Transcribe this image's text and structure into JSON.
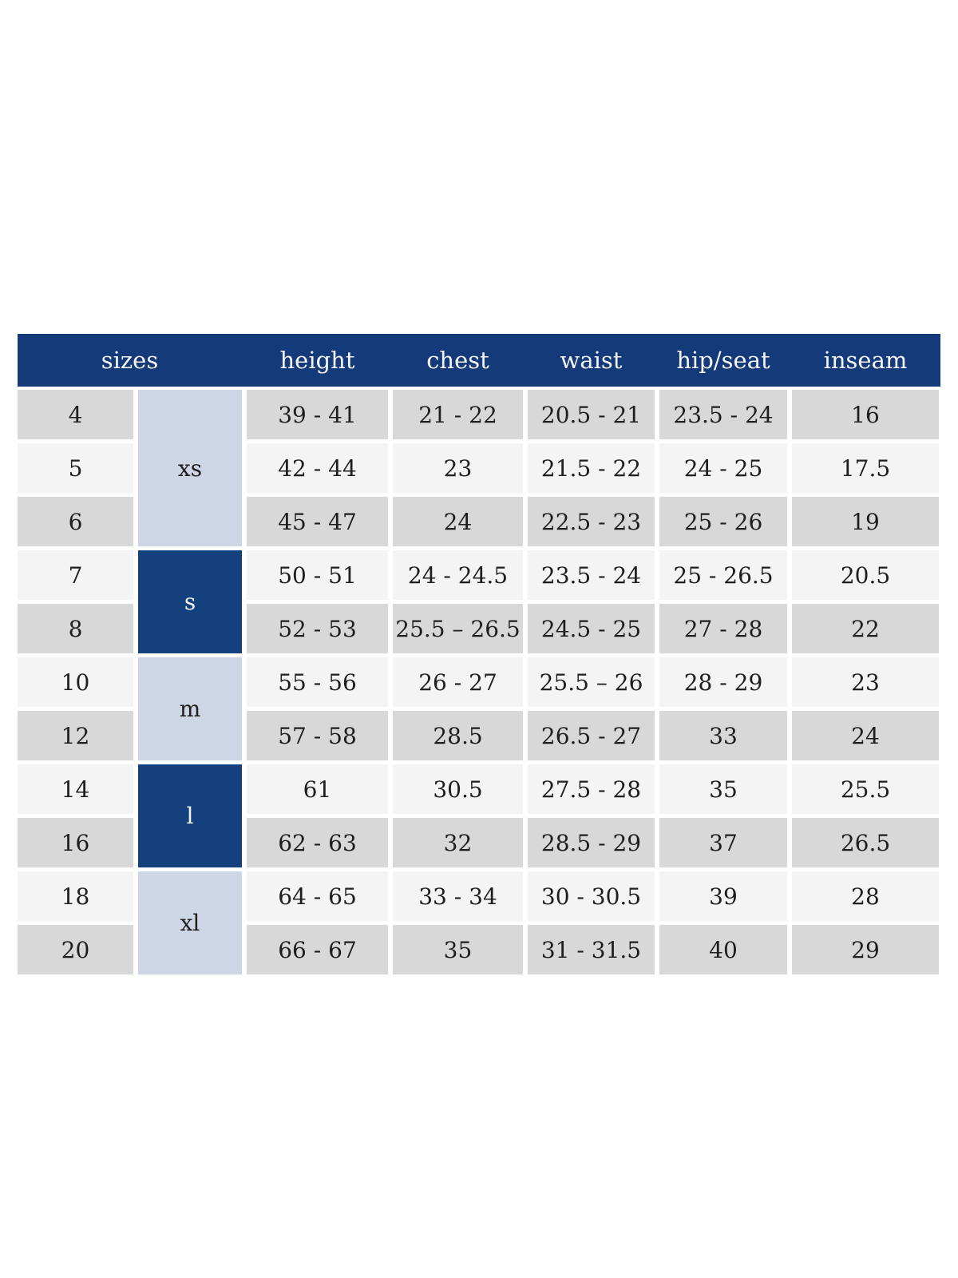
{
  "table": {
    "header": {
      "sizes": "sizes",
      "height": "height",
      "chest": "chest",
      "waist": "waist",
      "hip_seat": "hip/seat",
      "inseam": "inseam"
    },
    "groups": [
      {
        "label": "xs",
        "rows_spanned": 3,
        "style": "light"
      },
      {
        "label": "s",
        "rows_spanned": 2,
        "style": "dark"
      },
      {
        "label": "m",
        "rows_spanned": 2,
        "style": "light"
      },
      {
        "label": "l",
        "rows_spanned": 2,
        "style": "dark"
      },
      {
        "label": "xl",
        "rows_spanned": 2,
        "style": "light"
      }
    ],
    "rows": [
      {
        "size": "4",
        "group": "xs",
        "height": "39 - 41",
        "chest": "21 - 22",
        "waist": "20.5 - 21",
        "hip_seat": "23.5 - 24",
        "inseam": "16"
      },
      {
        "size": "5",
        "group": "xs",
        "height": "42 - 44",
        "chest": "23",
        "waist": "21.5 - 22",
        "hip_seat": "24 - 25",
        "inseam": "17.5"
      },
      {
        "size": "6",
        "group": "xs",
        "height": "45 - 47",
        "chest": "24",
        "waist": "22.5 - 23",
        "hip_seat": "25 - 26",
        "inseam": "19"
      },
      {
        "size": "7",
        "group": "s",
        "height": "50 - 51",
        "chest": "24 - 24.5",
        "waist": "23.5 - 24",
        "hip_seat": "25 - 26.5",
        "inseam": "20.5"
      },
      {
        "size": "8",
        "group": "s",
        "height": "52 - 53",
        "chest": "25.5 – 26.5",
        "waist": "24.5 - 25",
        "hip_seat": "27 - 28",
        "inseam": "22"
      },
      {
        "size": "10",
        "group": "m",
        "height": "55 - 56",
        "chest": "26 - 27",
        "waist": "25.5 – 26",
        "hip_seat": "28 - 29",
        "inseam": "23"
      },
      {
        "size": "12",
        "group": "m",
        "height": "57 - 58",
        "chest": "28.5",
        "waist": "26.5 - 27",
        "hip_seat": "33",
        "inseam": "24"
      },
      {
        "size": "14",
        "group": "l",
        "height": "61",
        "chest": "30.5",
        "waist": "27.5 - 28",
        "hip_seat": "35",
        "inseam": "25.5"
      },
      {
        "size": "16",
        "group": "l",
        "height": "62 - 63",
        "chest": "32",
        "waist": "28.5 - 29",
        "hip_seat": "37",
        "inseam": "26.5"
      },
      {
        "size": "18",
        "group": "xl",
        "height": "64 - 65",
        "chest": "33 - 34",
        "waist": "30 - 30.5",
        "hip_seat": "39",
        "inseam": "28"
      },
      {
        "size": "20",
        "group": "xl",
        "height": "66 - 67",
        "chest": "35",
        "waist": "31 - 31.5",
        "hip_seat": "40",
        "inseam": "29"
      }
    ],
    "colors": {
      "header_bg": "#143a7a",
      "group_dark_bg": "#14417e",
      "group_light_bg": "#ccd6e4",
      "row_dark_bg": "#d8d8d8",
      "row_light_bg": "#f4f4f4",
      "header_text": "#f5f6fa",
      "body_text": "#1e1e1e"
    }
  }
}
